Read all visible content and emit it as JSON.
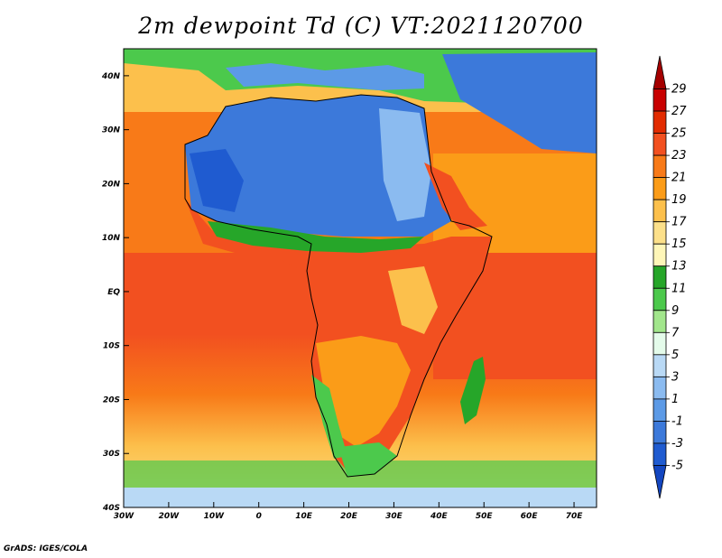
{
  "title": "2m dewpoint Td (C) VT:2021120700",
  "footer": "GrADS: IGES/COLA",
  "map": {
    "projection": "latlon",
    "lon_range": [
      -30,
      75
    ],
    "lat_range": [
      -40,
      45
    ],
    "x_ticks": [
      "30W",
      "20W",
      "10W",
      "0",
      "10E",
      "20E",
      "30E",
      "40E",
      "50E",
      "60E",
      "70E"
    ],
    "y_ticks": [
      "40N",
      "30N",
      "20N",
      "10N",
      "EQ",
      "10S",
      "20S",
      "30S",
      "40S"
    ],
    "field": "2m dewpoint temperature",
    "units": "C"
  },
  "colorbar": {
    "levels": [
      "29",
      "27",
      "25",
      "23",
      "21",
      "19",
      "17",
      "15",
      "13",
      "11",
      "9",
      "7",
      "5",
      "3",
      "1",
      "-1",
      "-3",
      "-5"
    ],
    "colors": [
      "#a50000",
      "#c80000",
      "#e22b00",
      "#f25020",
      "#f87a18",
      "#fb9c18",
      "#fcc04c",
      "#fce08a",
      "#fef6b8",
      "#26a629",
      "#4cc94c",
      "#a2e68c",
      "#e4fbea",
      "#b9d9f5",
      "#8bbbf0",
      "#5c9ae6",
      "#3c79da",
      "#1f5bd0",
      "#1346c0"
    ]
  }
}
